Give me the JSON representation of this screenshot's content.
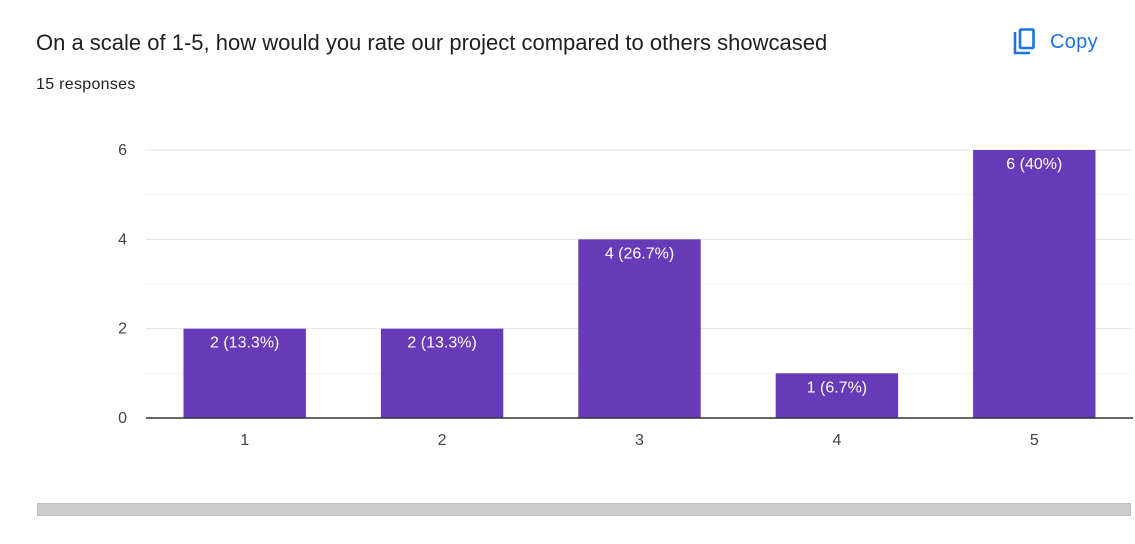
{
  "header": {
    "title": "On a scale of 1-5, how would you rate our project compared to others showcased",
    "responses": "15 responses",
    "copy_label": "Copy",
    "copy_icon": "copy-icon"
  },
  "colors": {
    "bar": "#673ab7",
    "accent": "#1a73e8",
    "grid": "#ebebeb",
    "axis": "#333333"
  },
  "chart_data": {
    "type": "bar",
    "categories": [
      "1",
      "2",
      "3",
      "4",
      "5"
    ],
    "values": [
      2,
      2,
      4,
      1,
      6
    ],
    "data_labels": [
      "2 (13.3%)",
      "2 (13.3%)",
      "4 (26.7%)",
      "1 (6.7%)",
      "6 (40%)"
    ],
    "y_ticks": [
      "0",
      "2",
      "4",
      "6"
    ],
    "ylim": [
      0,
      6
    ],
    "grid": true,
    "xlabel": "",
    "ylabel": ""
  }
}
